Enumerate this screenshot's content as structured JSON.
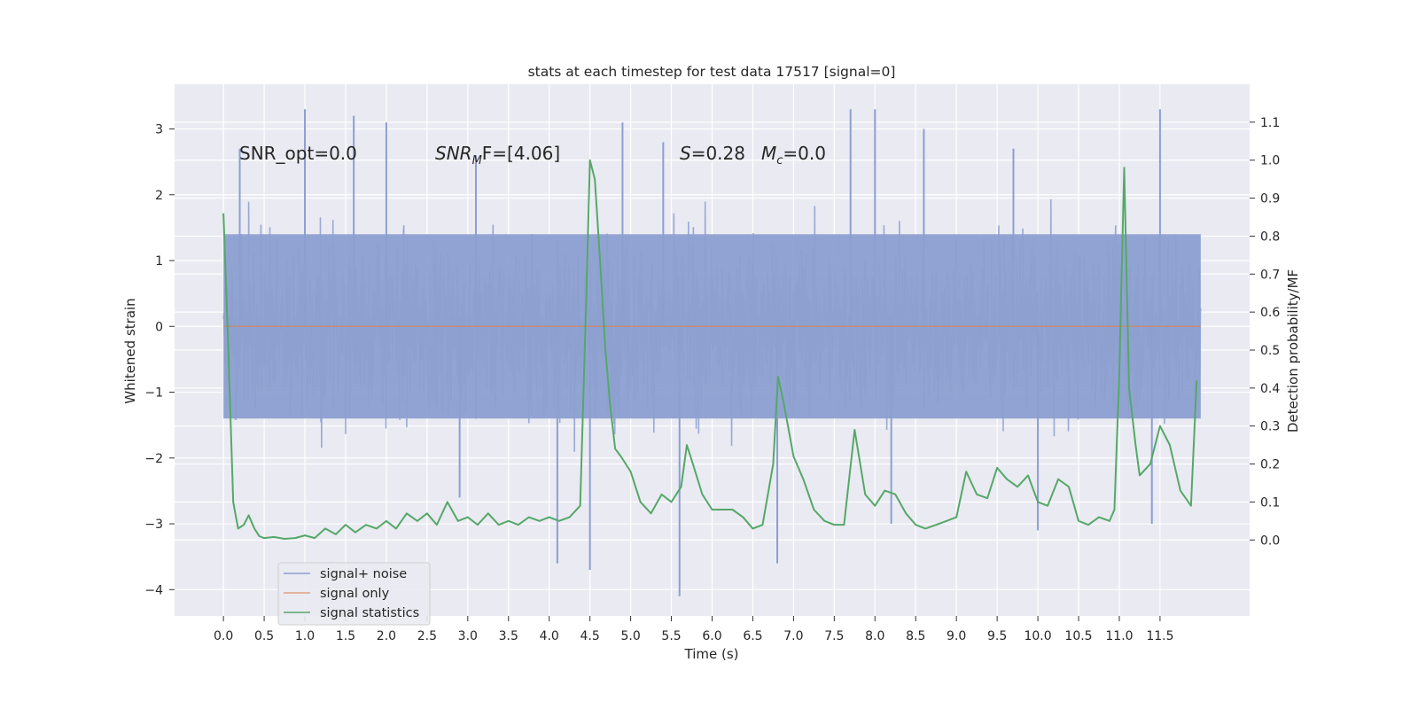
{
  "chart_data": {
    "type": "line",
    "title": "stats at each timestep for test data 17517 [signal=0]",
    "xlabel": "Time (s)",
    "ylabel": "Whitened strain",
    "y2label": "Detection probability/MF",
    "xlim": [
      -0.6,
      12.6
    ],
    "ylim": [
      -4.4,
      3.68
    ],
    "y2lim": [
      -0.2,
      1.2
    ],
    "x_ticks": [
      0.0,
      0.5,
      1.0,
      1.5,
      2.0,
      2.5,
      3.0,
      3.5,
      4.0,
      4.5,
      5.0,
      5.5,
      6.0,
      6.5,
      7.0,
      7.5,
      8.0,
      8.5,
      9.0,
      9.5,
      10.0,
      10.5,
      11.0,
      11.5
    ],
    "x_tick_labels": [
      "0.0",
      "0.5",
      "1.0",
      "1.5",
      "2.0",
      "2.5",
      "3.0",
      "3.5",
      "4.0",
      "4.5",
      "5.0",
      "5.5",
      "6.0",
      "6.5",
      "7.0",
      "7.5",
      "8.0",
      "8.5",
      "9.0",
      "9.5",
      "10.0",
      "10.5",
      "11.0",
      "11.5"
    ],
    "y_ticks": [
      3,
      2,
      1,
      0,
      -1,
      -2,
      -3,
      -4
    ],
    "y_tick_labels": [
      "3",
      "2",
      "1",
      "0",
      "−1",
      "−2",
      "−3",
      "−4"
    ],
    "y2_ticks": [
      1.1,
      1.0,
      0.9,
      0.8,
      0.7,
      0.6,
      0.5,
      0.4,
      0.3,
      0.2,
      0.1,
      0.0
    ],
    "y2_tick_labels": [
      "1.1",
      "1.0",
      "0.9",
      "0.8",
      "0.7",
      "0.6",
      "0.5",
      "0.4",
      "0.3",
      "0.2",
      "0.1",
      "0.0"
    ],
    "grid": true,
    "legend_position": "lower-left",
    "annotations": {
      "snr_opt": "SNR_opt=0.0",
      "snr_mf_main": "SNR",
      "snr_mf_sub": "M",
      "snr_mf_rest": "F=[4.06]",
      "s_main": "S",
      "s_rest": "=0.28",
      "mc_main": "M",
      "mc_sub": "c",
      "mc_rest": "=0.0"
    },
    "series": [
      {
        "name": "signal+ noise",
        "color": "#8c9fd0",
        "axis": "left",
        "x_range": [
          0.0,
          12.0
        ],
        "band": [
          -1.4,
          1.4
        ],
        "note_values": "dense noise trace; visible extremes",
        "peaks_up": [
          [
            0.2,
            2.7
          ],
          [
            1.0,
            3.3
          ],
          [
            1.6,
            3.2
          ],
          [
            2.0,
            3.1
          ],
          [
            4.9,
            3.1
          ],
          [
            7.7,
            3.3
          ],
          [
            8.0,
            3.3
          ],
          [
            8.6,
            3.0
          ],
          [
            11.5,
            3.3
          ],
          [
            9.7,
            2.7
          ],
          [
            3.1,
            2.6
          ],
          [
            5.4,
            2.8
          ]
        ],
        "peaks_down": [
          [
            4.1,
            -3.6
          ],
          [
            4.5,
            -3.7
          ],
          [
            5.6,
            -4.1
          ],
          [
            6.8,
            -3.6
          ],
          [
            10.0,
            -3.1
          ],
          [
            11.4,
            -3.0
          ],
          [
            2.9,
            -2.6
          ],
          [
            8.2,
            -3.0
          ]
        ]
      },
      {
        "name": "signal only",
        "color": "#dd8452",
        "axis": "left",
        "x": [
          0.0,
          12.0
        ],
        "y": [
          0.0,
          0.0
        ]
      },
      {
        "name": "signal statistics",
        "color": "#55a868",
        "axis": "right",
        "x": [
          0.0,
          0.06,
          0.12,
          0.18,
          0.25,
          0.31,
          0.38,
          0.44,
          0.5,
          0.62,
          0.75,
          0.88,
          1.0,
          1.12,
          1.25,
          1.38,
          1.5,
          1.62,
          1.75,
          1.88,
          2.0,
          2.12,
          2.25,
          2.38,
          2.5,
          2.62,
          2.75,
          2.88,
          3.0,
          3.12,
          3.25,
          3.38,
          3.5,
          3.62,
          3.75,
          3.88,
          4.0,
          4.12,
          4.25,
          4.38,
          4.45,
          4.5,
          4.56,
          4.62,
          4.69,
          4.75,
          4.81,
          4.88,
          5.0,
          5.12,
          5.25,
          5.38,
          5.5,
          5.62,
          5.69,
          5.75,
          5.88,
          6.0,
          6.12,
          6.25,
          6.38,
          6.5,
          6.62,
          6.75,
          6.81,
          6.88,
          7.0,
          7.12,
          7.25,
          7.38,
          7.5,
          7.62,
          7.75,
          7.88,
          8.0,
          8.12,
          8.25,
          8.38,
          8.5,
          8.62,
          8.75,
          8.88,
          9.0,
          9.12,
          9.25,
          9.38,
          9.5,
          9.62,
          9.75,
          9.88,
          10.0,
          10.12,
          10.25,
          10.38,
          10.5,
          10.62,
          10.75,
          10.88,
          10.94,
          11.0,
          11.06,
          11.12,
          11.2,
          11.25,
          11.38,
          11.5,
          11.62,
          11.75,
          11.88,
          11.95
        ],
        "y": [
          0.86,
          0.5,
          0.1,
          0.03,
          0.04,
          0.065,
          0.03,
          0.01,
          0.005,
          0.008,
          0.003,
          0.005,
          0.012,
          0.005,
          0.03,
          0.015,
          0.04,
          0.02,
          0.04,
          0.03,
          0.05,
          0.03,
          0.07,
          0.05,
          0.07,
          0.04,
          0.1,
          0.05,
          0.06,
          0.04,
          0.07,
          0.04,
          0.05,
          0.04,
          0.06,
          0.05,
          0.06,
          0.05,
          0.06,
          0.09,
          0.6,
          1.0,
          0.95,
          0.75,
          0.5,
          0.35,
          0.24,
          0.22,
          0.18,
          0.1,
          0.07,
          0.12,
          0.1,
          0.14,
          0.25,
          0.21,
          0.12,
          0.08,
          0.08,
          0.08,
          0.06,
          0.03,
          0.04,
          0.2,
          0.43,
          0.36,
          0.22,
          0.16,
          0.08,
          0.05,
          0.04,
          0.04,
          0.29,
          0.12,
          0.09,
          0.13,
          0.12,
          0.07,
          0.04,
          0.03,
          0.04,
          0.05,
          0.06,
          0.18,
          0.12,
          0.11,
          0.19,
          0.16,
          0.14,
          0.17,
          0.1,
          0.09,
          0.16,
          0.14,
          0.05,
          0.04,
          0.06,
          0.05,
          0.08,
          0.44,
          0.98,
          0.4,
          0.25,
          0.17,
          0.2,
          0.3,
          0.25,
          0.13,
          0.09,
          0.42
        ]
      }
    ]
  }
}
